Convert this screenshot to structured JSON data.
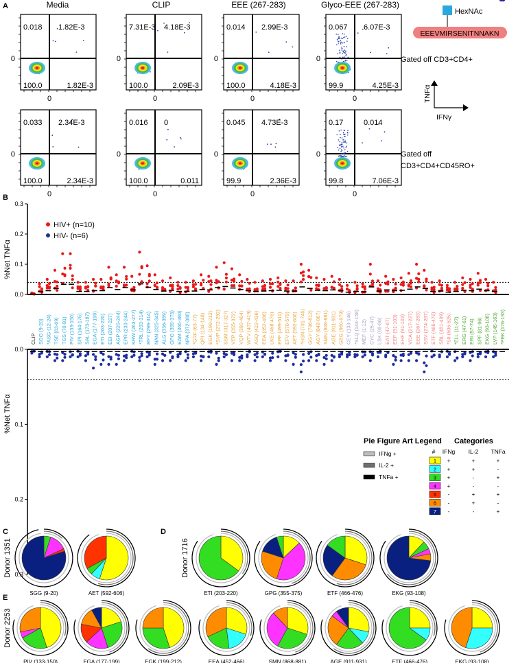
{
  "panelA": {
    "letter": "A",
    "columns": [
      "Media",
      "CLIP",
      "EEE (267-283)",
      "Glyco-EEE (267-283)"
    ],
    "rows": [
      {
        "label": "Gated off CD3+CD4+",
        "plots": [
          {
            "ul": "0.018",
            "ur": "1.82E-3",
            "ll": "100.0",
            "lr": "1.82E-3"
          },
          {
            "ul": "7.31E-3",
            "ur": "4.18E-3",
            "ll": "100.0",
            "lr": "2.09E-3"
          },
          {
            "ul": "0.014",
            "ur": "2.99E-3",
            "ll": "100.0",
            "lr": "4.18E-3"
          },
          {
            "ul": "0.067",
            "ur": "6.07E-3",
            "ll": "99.9",
            "lr": "4.25E-3"
          }
        ]
      },
      {
        "label": "Gated off CD3+CD4+CD45RO+",
        "plots": [
          {
            "ul": "0.033",
            "ur": "2.34E-3",
            "ll": "100.0",
            "lr": "2.34E-3"
          },
          {
            "ul": "0.016",
            "ur": "0",
            "ll": "100.0",
            "lr": "0.011"
          },
          {
            "ul": "0.045",
            "ur": "4.73E-3",
            "ll": "99.9",
            "lr": "2.36E-3"
          },
          {
            "ul": "0.17",
            "ur": "0.014",
            "ll": "99.8",
            "lr": "7.06E-3"
          }
        ]
      }
    ],
    "axis_zero": "0",
    "glycan_label": "HexNAc",
    "peptide": "EEEVMIRSENITNNAKN",
    "y_axis_label": "TNFα",
    "x_axis_label": "IFNγ",
    "peptide_color": "#f08080",
    "glycan_color": "#29a8e0"
  },
  "panelB": {
    "letter": "B",
    "ylabel_top": "%Net TNFα",
    "ylabel_bottom": "%Net TNFα",
    "yticks_top": [
      "0.3",
      "0.2",
      "0.1",
      "0.0"
    ],
    "yticks_bottom": [
      "0.0",
      "0.1",
      "0.2",
      "0.3"
    ],
    "legend": [
      {
        "label": "HIV+ (n=10)",
        "color": "#e8191a"
      },
      {
        "label": "HIV- (n=6)",
        "color": "#1f2e9e"
      }
    ],
    "threshold": 0.04,
    "peptides": [
      {
        "label": "CLIP",
        "color": "#222222"
      },
      {
        "label": "SGG (9-20)",
        "color": "#2aa7d8"
      },
      {
        "label": "*ASG (12-24)",
        "color": "#2aa7d8"
      },
      {
        "label": "TSE (63-69)",
        "color": "#2aa7d8"
      },
      {
        "label": "TGS (70-81)",
        "color": "#2aa7d8"
      },
      {
        "label": "PIV (133-150)",
        "color": "#2aa7d8"
      },
      {
        "label": "SPI (164-175)",
        "color": "#2aa7d8"
      },
      {
        "label": "SAL (173-187)",
        "color": "#2aa7d8"
      },
      {
        "label": "EGA (177-199)",
        "color": "#2aa7d8"
      },
      {
        "label": "ETI (203-220)",
        "color": "#2aa7d8"
      },
      {
        "label": "EEI (207-227)",
        "color": "#2aa7d8"
      },
      {
        "label": "AGP (220-244)",
        "color": "#2aa7d8"
      },
      {
        "label": "EPR (230-244)",
        "color": "#2aa7d8"
      },
      {
        "label": "KRW (263-277)",
        "color": "#2aa7d8"
      },
      {
        "label": "*TRL (293-314)",
        "color": "#2aa7d8"
      },
      {
        "label": "RFY (299-314)",
        "color": "#2aa7d8"
      },
      {
        "label": "NAN (325-345)",
        "color": "#2aa7d8"
      },
      {
        "label": "ALG (336-359)",
        "color": "#2aa7d8"
      },
      {
        "label": "GPG (355-375)",
        "color": "#2aa7d8"
      },
      {
        "label": "EAM (365-380)",
        "color": "#2aa7d8"
      },
      {
        "label": "NPA (372-388)",
        "color": "#2aa7d8"
      },
      {
        "label": "*GRF (63-77)",
        "color": "#e8a33a"
      },
      {
        "label": "QPI (134-148)",
        "color": "#e8a33a"
      },
      {
        "label": "EGK (199-212)",
        "color": "#e8a33a"
      },
      {
        "label": "*SVP (272-292)",
        "color": "#e8a33a"
      },
      {
        "label": "SSM (317-327)",
        "color": "#e8a33a"
      },
      {
        "label": "VEP (355-372)",
        "color": "#e8a33a"
      },
      {
        "label": "VQP (390-404)",
        "color": "#e8a33a"
      },
      {
        "label": "WTV (407-419)",
        "color": "#e8a33a"
      },
      {
        "label": "ASQ (422-436)",
        "color": "#e8a33a"
      },
      {
        "label": "EEA (452-466)",
        "color": "#e8a33a"
      },
      {
        "label": "LKE (458-476)",
        "color": "#e8a33a"
      },
      {
        "label": "EPF (499-511)",
        "color": "#e8a33a"
      },
      {
        "label": "EFV (570-579)",
        "color": "#e8a33a"
      },
      {
        "label": "AET (592-606)",
        "color": "#e8a33a"
      },
      {
        "label": "*HSN (731-745)",
        "color": "#e8a33a"
      },
      {
        "label": "GGY (796-812)",
        "color": "#e8a33a"
      },
      {
        "label": "AGY (848-867)",
        "color": "#e8a33a"
      },
      {
        "label": "SMN (868-881)",
        "color": "#e8a33a"
      },
      {
        "label": "AGE (911-931)",
        "color": "#e8a33a"
      },
      {
        "label": "GEG (960-979)",
        "color": "#e8a33a"
      },
      {
        "label": "CEY (133-146)",
        "color": "#a89dc4"
      },
      {
        "label": "*SLQ (144-158)",
        "color": "#a89dc4"
      },
      {
        "label": "MEF (1-12)",
        "color": "#a89dc4"
      },
      {
        "label": "CYC (25-47)",
        "color": "#a89dc4"
      },
      {
        "label": "LSK (69-86)",
        "color": "#a89dc4"
      },
      {
        "label": "EAT (47-67)",
        "color": "#f08080"
      },
      {
        "label": "EEF (91-103)",
        "color": "#f08080"
      },
      {
        "label": "EHF (91-103)",
        "color": "#f08080"
      },
      {
        "label": "VCA (217-227)",
        "color": "#f08080"
      },
      {
        "label": "EEE (267-283)",
        "color": "#f08080"
      },
      {
        "label": "SSV (274-287)",
        "color": "#f08080"
      },
      {
        "label": "ETF (466-476)",
        "color": "#f08080"
      },
      {
        "label": "SBL (481-499)",
        "color": "#f08080"
      },
      {
        "label": "*SII (506-525)",
        "color": "#f08080"
      },
      {
        "label": "*ELL (11-27)",
        "color": "#4aa82e"
      },
      {
        "label": "ERG (47-61)",
        "color": "#4aa82e"
      },
      {
        "label": "ERI (57-74)",
        "color": "#4aa82e"
      },
      {
        "label": "SPF (81-96)",
        "color": "#4aa82e"
      },
      {
        "label": "EKG (93-108)",
        "color": "#4aa82e"
      },
      {
        "label": "LVP (145-163)",
        "color": "#4aa82e"
      },
      {
        "label": "*PEK (176-193)",
        "color": "#4aa82e"
      }
    ]
  },
  "legendBox": {
    "pie_title": "Pie Figure Art Legend",
    "pie_items": [
      {
        "label": "IFNg +",
        "color": "#bdbdbd"
      },
      {
        "label": "IL-2 +",
        "color": "#6e6e6e"
      },
      {
        "label": "TNFa +",
        "color": "#000000"
      }
    ],
    "categories_title": "Categories",
    "headers": [
      "#",
      "IFNg",
      "IL-2",
      "TNFa"
    ],
    "rows": [
      {
        "num": "1",
        "color": "#ffff00",
        "ifng": "+",
        "il2": "+",
        "tnfa": "+"
      },
      {
        "num": "2",
        "color": "#33ffff",
        "ifng": "+",
        "il2": "+",
        "tnfa": "-"
      },
      {
        "num": "3",
        "color": "#33dd22",
        "ifng": "+",
        "il2": "-",
        "tnfa": "+"
      },
      {
        "num": "4",
        "color": "#ff33ff",
        "ifng": "+",
        "il2": "-",
        "tnfa": "-"
      },
      {
        "num": "5",
        "color": "#ff3300",
        "ifng": "-",
        "il2": "+",
        "tnfa": "+"
      },
      {
        "num": "6",
        "color": "#ff8c00",
        "ifng": "-",
        "il2": "+",
        "tnfa": "-"
      },
      {
        "num": "7",
        "color": "#0a2080",
        "ifng": "-",
        "il2": "-",
        "tnfa": "+"
      }
    ]
  },
  "panelC": {
    "letter": "C",
    "donor": "Donor 1351",
    "pies": [
      {
        "label": "SGG (9-20)",
        "slices": [
          {
            "cat": 3,
            "v": 5
          },
          {
            "cat": 4,
            "v": 13
          },
          {
            "cat": 5,
            "v": 2
          },
          {
            "cat": 7,
            "v": 80
          }
        ]
      },
      {
        "label": "AET (592-606)",
        "slices": [
          {
            "cat": 1,
            "v": 55
          },
          {
            "cat": 2,
            "v": 7
          },
          {
            "cat": 3,
            "v": 5
          },
          {
            "cat": 5,
            "v": 33
          }
        ]
      }
    ]
  },
  "panelD": {
    "letter": "D",
    "donor": "Donor 1716",
    "pies": [
      {
        "label": "ETI (203-220)",
        "slices": [
          {
            "cat": 1,
            "v": 35
          },
          {
            "cat": 3,
            "v": 65
          }
        ]
      },
      {
        "label": "GPG (355-375)",
        "slices": [
          {
            "cat": 1,
            "v": 13
          },
          {
            "cat": 4,
            "v": 42
          },
          {
            "cat": 6,
            "v": 25
          },
          {
            "cat": 7,
            "v": 15
          },
          {
            "cat": 3,
            "v": 5
          }
        ]
      },
      {
        "label": "ETF (466-476)",
        "slices": [
          {
            "cat": 1,
            "v": 30
          },
          {
            "cat": 6,
            "v": 30
          },
          {
            "cat": 7,
            "v": 25
          },
          {
            "cat": 3,
            "v": 15
          }
        ]
      },
      {
        "label": "EKG (93-108)",
        "slices": [
          {
            "cat": 1,
            "v": 12
          },
          {
            "cat": 3,
            "v": 6
          },
          {
            "cat": 4,
            "v": 4
          },
          {
            "cat": 6,
            "v": 5
          },
          {
            "cat": 7,
            "v": 73
          }
        ]
      }
    ]
  },
  "panelE": {
    "letter": "E",
    "donor": "Donor 2253",
    "pies": [
      {
        "label": "PIV (133-150)",
        "slices": [
          {
            "cat": 1,
            "v": 45
          },
          {
            "cat": 3,
            "v": 22
          },
          {
            "cat": 4,
            "v": 5
          },
          {
            "cat": 6,
            "v": 28
          }
        ]
      },
      {
        "label": "EGA (177-199)",
        "slices": [
          {
            "cat": 1,
            "v": 20
          },
          {
            "cat": 3,
            "v": 25
          },
          {
            "cat": 4,
            "v": 18
          },
          {
            "cat": 5,
            "v": 15
          },
          {
            "cat": 6,
            "v": 14
          },
          {
            "cat": 7,
            "v": 8
          }
        ]
      },
      {
        "label": "EGK (199-212)",
        "slices": [
          {
            "cat": 1,
            "v": 45
          },
          {
            "cat": 3,
            "v": 30
          },
          {
            "cat": 6,
            "v": 25
          }
        ]
      },
      {
        "label": "EEA (452-466)",
        "slices": [
          {
            "cat": 1,
            "v": 30
          },
          {
            "cat": 2,
            "v": 18
          },
          {
            "cat": 3,
            "v": 20
          },
          {
            "cat": 6,
            "v": 32
          }
        ]
      },
      {
        "label": "SMN (868-881)",
        "slices": [
          {
            "cat": 1,
            "v": 30
          },
          {
            "cat": 3,
            "v": 28
          },
          {
            "cat": 4,
            "v": 30
          },
          {
            "cat": 6,
            "v": 12
          }
        ]
      },
      {
        "label": "AGE (911-931)",
        "slices": [
          {
            "cat": 1,
            "v": 28
          },
          {
            "cat": 2,
            "v": 10
          },
          {
            "cat": 3,
            "v": 22
          },
          {
            "cat": 6,
            "v": 25
          },
          {
            "cat": 4,
            "v": 5
          },
          {
            "cat": 7,
            "v": 10
          }
        ]
      },
      {
        "label": "ETF (466-476)",
        "slices": [
          {
            "cat": 1,
            "v": 25
          },
          {
            "cat": 2,
            "v": 10
          },
          {
            "cat": 3,
            "v": 65
          }
        ]
      },
      {
        "label": "EKG (93-108)",
        "slices": [
          {
            "cat": 1,
            "v": 25
          },
          {
            "cat": 2,
            "v": 30
          },
          {
            "cat": 6,
            "v": 45
          }
        ]
      }
    ]
  },
  "chart_data": {
    "type": "scatter",
    "title": "",
    "ylabel": "%Net TNFα",
    "ylim": [
      0,
      0.3
    ],
    "series": [
      {
        "name": "HIV+ (n=10)",
        "direction": "up",
        "color": "#e8191a",
        "max_values": [
          0.005,
          0.035,
          0.05,
          0.08,
          0.135,
          0.135,
          0.04,
          0.04,
          0.05,
          0.05,
          0.09,
          0.065,
          0.09,
          0.06,
          0.14,
          0.095,
          0.065,
          0.045,
          0.055,
          0.04,
          0.04,
          0.045,
          0.065,
          0.06,
          0.09,
          0.105,
          0.085,
          0.065,
          0.05,
          0.04,
          0.045,
          0.05,
          0.055,
          0.045,
          0.045,
          0.1,
          0.08,
          0.055,
          0.05,
          0.06,
          0.05,
          0.03,
          0.04,
          0.035,
          0.1,
          0.045,
          0.06,
          0.05,
          0.055,
          0.07,
          0.1,
          0.08,
          0.04,
          0.045,
          0.03,
          0.04,
          0.055,
          0.05,
          0.07,
          0.05,
          0.04
        ]
      },
      {
        "name": "HIV- (n=6)",
        "direction": "down",
        "color": "#1f2e9e",
        "max_values": [
          0.005,
          0.01,
          0.01,
          0.015,
          0.015,
          0.01,
          0.01,
          0.015,
          0.025,
          0.02,
          0.02,
          0.02,
          0.015,
          0.01,
          0.015,
          0.01,
          0.02,
          0.015,
          0.015,
          0.01,
          0.015,
          0.01,
          0.015,
          0.01,
          0.02,
          0.01,
          0.015,
          0.015,
          0.01,
          0.015,
          0.01,
          0.015,
          0.01,
          0.015,
          0.02,
          0.03,
          0.015,
          0.015,
          0.02,
          0.015,
          0.01,
          0.01,
          0.01,
          0.01,
          0.015,
          0.01,
          0.01,
          0.02,
          0.015,
          0.015,
          0.015,
          0.03,
          0.01,
          0.01,
          0.01,
          0.015,
          0.01,
          0.015,
          0.01,
          0.01,
          0.01
        ]
      }
    ],
    "threshold": 0.04
  }
}
